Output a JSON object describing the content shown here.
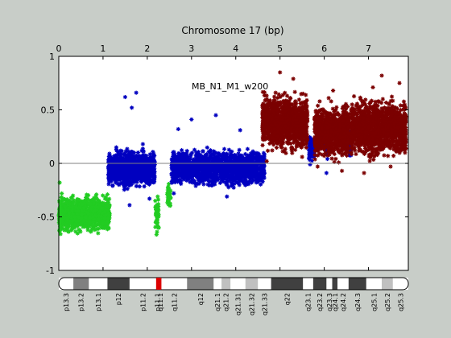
{
  "chart_data": {
    "type": "scatter",
    "title": "Chromosome 17 (bp)",
    "annotation": "MB_N1_M1_w200",
    "x_axis": {
      "range": [
        0,
        7.9
      ],
      "ticks": [
        0,
        1,
        2,
        3,
        4,
        5,
        6,
        7
      ],
      "tick_labels": [
        "0",
        "1",
        "2",
        "3",
        "4",
        "5",
        "6",
        "7"
      ],
      "position": "top"
    },
    "y_axis": {
      "range": [
        -1,
        1
      ],
      "ticks": [
        -1,
        -0.5,
        0,
        0.5,
        1
      ],
      "tick_labels": [
        "-1",
        "-0.5",
        "0",
        "0.5",
        "1"
      ]
    },
    "reference_line": 0,
    "grid": false,
    "series": [
      {
        "color": "#22cc22",
        "x_range": [
          0.0,
          1.15
        ],
        "center": -0.47,
        "spread": 0.07,
        "count": 900,
        "outliers": [
          [
            0.02,
            -0.18
          ],
          [
            0.04,
            -0.66
          ],
          [
            1.1,
            -0.29
          ]
        ]
      },
      {
        "color": "#22cc22",
        "x_range": [
          2.18,
          2.26
        ],
        "center": -0.47,
        "spread": 0.08,
        "count": 40,
        "outliers": [
          [
            2.22,
            -0.64
          ],
          [
            2.26,
            -0.6
          ]
        ]
      },
      {
        "color": "#22cc22",
        "x_range": [
          2.45,
          2.53
        ],
        "center": -0.31,
        "spread": 0.06,
        "count": 30,
        "outliers": []
      },
      {
        "color": "#0000c0",
        "x_range": [
          1.12,
          2.17
        ],
        "center": -0.05,
        "spread": 0.07,
        "count": 1000,
        "outliers": [
          [
            1.5,
            0.62
          ],
          [
            1.75,
            0.66
          ],
          [
            1.65,
            0.52
          ],
          [
            1.9,
            0.18
          ],
          [
            1.3,
            0.15
          ],
          [
            2.05,
            -0.33
          ],
          [
            1.6,
            -0.39
          ]
        ]
      },
      {
        "color": "#0000c0",
        "x_range": [
          2.55,
          4.65
        ],
        "center": -0.04,
        "spread": 0.07,
        "count": 1500,
        "outliers": [
          [
            3.0,
            0.41
          ],
          [
            3.55,
            0.45
          ],
          [
            4.1,
            0.31
          ],
          [
            2.7,
            0.32
          ],
          [
            3.8,
            -0.31
          ],
          [
            2.6,
            -0.28
          ]
        ]
      },
      {
        "color": "#0000c0",
        "x_range": [
          5.65,
          5.78
        ],
        "center": 0.14,
        "spread": 0.05,
        "count": 90,
        "outliers": [
          [
            5.68,
            -0.01
          ]
        ]
      },
      {
        "color": "#0000c0",
        "x_range": [
          6.0,
          6.1
        ],
        "center": 0.17,
        "spread": 0.06,
        "count": 70,
        "outliers": [
          [
            6.05,
            -0.09
          ]
        ]
      },
      {
        "color": "#0000c0",
        "x_range": [
          6.55,
          6.62
        ],
        "center": 0.17,
        "spread": 0.05,
        "count": 50,
        "outliers": []
      },
      {
        "color": "#7b0000",
        "x_range": [
          4.6,
          5.62
        ],
        "center": 0.38,
        "spread": 0.11,
        "count": 1100,
        "outliers": [
          [
            5.0,
            0.85
          ],
          [
            5.3,
            0.79
          ],
          [
            4.7,
            0.02
          ],
          [
            5.5,
            0.06
          ],
          [
            4.9,
            0.66
          ]
        ]
      },
      {
        "color": "#7b0000",
        "x_range": [
          5.78,
          6.56
        ],
        "center": 0.29,
        "spread": 0.1,
        "count": 900,
        "outliers": [
          [
            6.2,
            0.68
          ],
          [
            5.85,
            -0.03
          ],
          [
            6.4,
            -0.07
          ],
          [
            6.1,
            0.61
          ]
        ]
      },
      {
        "color": "#7b0000",
        "x_range": [
          6.6,
          7.85
        ],
        "center": 0.33,
        "spread": 0.11,
        "count": 1300,
        "outliers": [
          [
            7.3,
            0.82
          ],
          [
            7.7,
            0.75
          ],
          [
            7.5,
            -0.03
          ],
          [
            6.9,
            -0.09
          ],
          [
            7.1,
            0.71
          ]
        ]
      }
    ],
    "ideogram": {
      "bands": [
        {
          "name": "p13.3",
          "start": 0.0,
          "end": 0.33,
          "stain": "#ffffff"
        },
        {
          "name": "p13.2",
          "start": 0.33,
          "end": 0.68,
          "stain": "#808080"
        },
        {
          "name": "p13.1",
          "start": 0.68,
          "end": 1.1,
          "stain": "#ffffff"
        },
        {
          "name": "p12",
          "start": 1.1,
          "end": 1.6,
          "stain": "#404040"
        },
        {
          "name": "p11.2",
          "start": 1.6,
          "end": 2.2,
          "stain": "#ffffff"
        },
        {
          "name": "p11.1",
          "start": 2.2,
          "end": 2.26,
          "stain": "#dd0000"
        },
        {
          "name": "q11.1",
          "start": 2.26,
          "end": 2.32,
          "stain": "#dd0000"
        },
        {
          "name": "q11.2",
          "start": 2.32,
          "end": 2.9,
          "stain": "#ffffff"
        },
        {
          "name": "q12",
          "start": 2.9,
          "end": 3.5,
          "stain": "#808080"
        },
        {
          "name": "q21.1",
          "start": 3.5,
          "end": 3.68,
          "stain": "#ffffff"
        },
        {
          "name": "q21.2",
          "start": 3.68,
          "end": 3.88,
          "stain": "#c0c0c0"
        },
        {
          "name": "q21.31",
          "start": 3.88,
          "end": 4.22,
          "stain": "#ffffff"
        },
        {
          "name": "q21.32",
          "start": 4.22,
          "end": 4.5,
          "stain": "#c0c0c0"
        },
        {
          "name": "q21.33",
          "start": 4.5,
          "end": 4.8,
          "stain": "#ffffff"
        },
        {
          "name": "q22",
          "start": 4.8,
          "end": 5.52,
          "stain": "#404040"
        },
        {
          "name": "q23.1",
          "start": 5.52,
          "end": 5.75,
          "stain": "#ffffff"
        },
        {
          "name": "q23.2",
          "start": 5.75,
          "end": 6.05,
          "stain": "#404040"
        },
        {
          "name": "q23.3",
          "start": 6.05,
          "end": 6.18,
          "stain": "#ffffff"
        },
        {
          "name": "q24.1",
          "start": 6.18,
          "end": 6.3,
          "stain": "#404040"
        },
        {
          "name": "q24.2",
          "start": 6.3,
          "end": 6.55,
          "stain": "#ffffff"
        },
        {
          "name": "q24.3",
          "start": 6.55,
          "end": 6.95,
          "stain": "#404040"
        },
        {
          "name": "q25.1",
          "start": 6.95,
          "end": 7.3,
          "stain": "#ffffff"
        },
        {
          "name": "q25.2",
          "start": 7.3,
          "end": 7.55,
          "stain": "#c0c0c0"
        },
        {
          "name": "q25.3",
          "start": 7.55,
          "end": 7.9,
          "stain": "#ffffff"
        }
      ],
      "band_labels_shown": [
        "p13.3",
        "p13.2",
        "p13.1",
        "p12",
        "p11.2",
        "p11.1",
        "q11.1",
        "q11.2",
        "q12",
        "q21.1",
        "q21.2",
        "q21.31",
        "q21.32",
        "q21.33",
        "q22",
        "q23.1",
        "q23.2",
        "q23.3",
        "q24.1",
        "q24.2",
        "q24.3",
        "q25.1",
        "q25.2",
        "q25.3"
      ]
    }
  }
}
